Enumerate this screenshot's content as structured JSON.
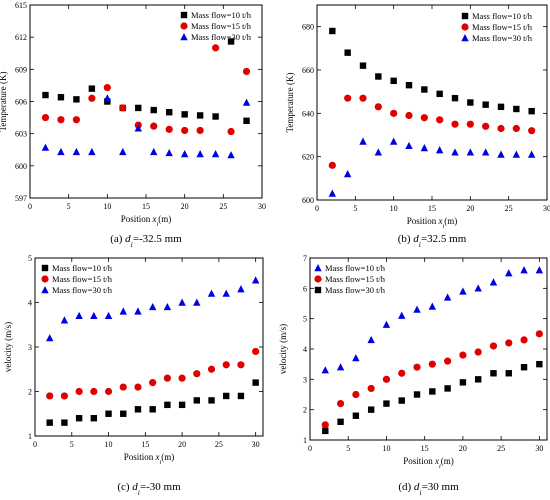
{
  "chart_data": [
    {
      "type": "scatter",
      "caption_pre": "(a) ",
      "caption_var": "d",
      "caption_sub": "i",
      "caption_post": "=-32.5 mm",
      "xlabel_pre": "Position ",
      "xlabel_var": "x",
      "xlabel_sub": "i",
      "xlabel_post": "(m)",
      "ylabel": "Temperature (K)",
      "xlim": [
        0,
        30
      ],
      "ylim": [
        597,
        615
      ],
      "xticks": [
        "0",
        "5",
        "10",
        "15",
        "20",
        "25",
        "30"
      ],
      "xtick_values": [
        0,
        5,
        10,
        15,
        20,
        25,
        30
      ],
      "yticks": [
        "597",
        "600",
        "603",
        "606",
        "609",
        "612",
        "615"
      ],
      "ytick_values": [
        597,
        600,
        603,
        606,
        609,
        612,
        615
      ],
      "x": [
        2,
        4,
        6,
        8,
        10,
        12,
        14,
        16,
        18,
        20,
        22,
        24,
        26,
        28
      ],
      "legend_position": "top-right",
      "series": [
        {
          "name": "Mass flow=10 t/h",
          "marker": "square",
          "color": "#000000",
          "values": [
            606.6,
            606.4,
            606.2,
            607.2,
            606.0,
            605.4,
            605.4,
            605.2,
            605.0,
            604.8,
            604.7,
            604.6,
            611.6,
            604.2
          ]
        },
        {
          "name": "Mass flow=15 t/h",
          "marker": "circle",
          "color": "#e00000",
          "values": [
            604.5,
            604.3,
            604.3,
            606.3,
            607.3,
            605.4,
            603.8,
            603.7,
            603.4,
            603.3,
            603.3,
            611.0,
            603.2,
            608.8
          ]
        },
        {
          "name": "Mass flow=30 t/h",
          "marker": "triangle",
          "color": "#0000e0",
          "values": [
            601.7,
            601.3,
            601.3,
            601.3,
            606.3,
            601.3,
            603.5,
            601.3,
            601.2,
            601.1,
            601.1,
            601.1,
            601.0,
            605.9
          ]
        }
      ]
    },
    {
      "type": "scatter",
      "caption_pre": "(b) ",
      "caption_var": "d",
      "caption_sub": "i",
      "caption_post": "=32.5 mm",
      "xlabel_pre": "Position ",
      "xlabel_var": "x",
      "xlabel_sub": "i",
      "xlabel_post": "(m)",
      "ylabel": "Temperature (K)",
      "xlim": [
        0,
        30
      ],
      "ylim": [
        600,
        690
      ],
      "xticks": [
        "0",
        "5",
        "10",
        "15",
        "20",
        "25",
        "30"
      ],
      "xtick_values": [
        0,
        5,
        10,
        15,
        20,
        25,
        30
      ],
      "yticks": [
        "600",
        "620",
        "640",
        "660",
        "680"
      ],
      "ytick_values": [
        600,
        620,
        640,
        660,
        680
      ],
      "x": [
        2,
        4,
        6,
        8,
        10,
        12,
        14,
        16,
        18,
        20,
        22,
        24,
        26,
        28
      ],
      "legend_position": "top-right",
      "series": [
        {
          "name": "Mass flow=10 t/h",
          "marker": "square",
          "color": "#000000",
          "values": [
            678,
            668,
            662,
            657,
            655,
            653,
            651,
            649,
            647,
            645,
            644,
            643,
            642,
            641
          ]
        },
        {
          "name": "Mass flow=15 t/h",
          "marker": "circle",
          "color": "#e00000",
          "values": [
            616,
            647,
            647,
            643,
            640,
            639,
            638,
            637,
            635,
            635,
            634,
            633,
            633,
            632
          ]
        },
        {
          "name": "Mass flow=30 t/h",
          "marker": "triangle",
          "color": "#0000e0",
          "values": [
            603,
            612,
            627,
            622,
            627,
            625,
            624,
            623,
            622,
            622,
            622,
            621,
            621,
            621
          ]
        }
      ]
    },
    {
      "type": "scatter",
      "caption_pre": "(c) ",
      "caption_var": "d",
      "caption_sub": "i",
      "caption_post": "=-30 mm",
      "xlabel_pre": "Position ",
      "xlabel_var": "x",
      "xlabel_sub": "i",
      "xlabel_post": "(m)",
      "ylabel": "velocity (m/s)",
      "xlim": [
        0,
        31
      ],
      "ylim": [
        1,
        5
      ],
      "xticks": [
        "0",
        "5",
        "10",
        "15",
        "20",
        "25",
        "30"
      ],
      "xtick_values": [
        0,
        5,
        10,
        15,
        20,
        25,
        30
      ],
      "yticks": [
        "1",
        "2",
        "3",
        "4",
        "5"
      ],
      "ytick_values": [
        1,
        2,
        3,
        4,
        5
      ],
      "x": [
        2,
        4,
        6,
        8,
        10,
        12,
        14,
        16,
        18,
        20,
        22,
        24,
        26,
        28,
        30
      ],
      "legend_position": "top-left",
      "series": [
        {
          "name": "Mass flow=10 t/h",
          "marker": "square",
          "color": "#000000",
          "values": [
            1.3,
            1.3,
            1.4,
            1.4,
            1.5,
            1.5,
            1.6,
            1.6,
            1.7,
            1.7,
            1.8,
            1.8,
            1.9,
            1.9,
            2.2
          ]
        },
        {
          "name": "Mass flow=15 t/h",
          "marker": "circle",
          "color": "#e00000",
          "values": [
            1.9,
            1.9,
            2.0,
            2.0,
            2.0,
            2.1,
            2.1,
            2.2,
            2.3,
            2.3,
            2.4,
            2.5,
            2.6,
            2.6,
            2.9
          ]
        },
        {
          "name": "Mass flow=30 t/h",
          "marker": "triangle",
          "color": "#0000e0",
          "values": [
            3.2,
            3.6,
            3.7,
            3.7,
            3.7,
            3.8,
            3.8,
            3.9,
            3.9,
            4.0,
            4.0,
            4.2,
            4.2,
            4.3,
            4.5
          ]
        }
      ]
    },
    {
      "type": "scatter",
      "caption_pre": "(d) ",
      "caption_var": "d",
      "caption_sub": "i",
      "caption_post": "=30 mm",
      "xlabel_pre": "Position ",
      "xlabel_var": "x",
      "xlabel_sub": "i",
      "xlabel_post": "(m)",
      "ylabel": "velocity (m/s)",
      "xlim": [
        0,
        31
      ],
      "ylim": [
        1,
        7
      ],
      "xticks": [
        "0",
        "5",
        "10",
        "15",
        "20",
        "25",
        "30"
      ],
      "xtick_values": [
        0,
        5,
        10,
        15,
        20,
        25,
        30
      ],
      "yticks": [
        "1",
        "2",
        "3",
        "4",
        "5",
        "6",
        "7"
      ],
      "ytick_values": [
        1,
        2,
        3,
        4,
        5,
        6,
        7
      ],
      "x": [
        2,
        4,
        6,
        8,
        10,
        12,
        14,
        16,
        18,
        20,
        22,
        24,
        26,
        28,
        30
      ],
      "legend_position": "top-left",
      "series": [
        {
          "name": "Mass flow=10 t/h",
          "marker": "triangle",
          "color": "#0000e0",
          "values": [
            3.3,
            3.4,
            3.7,
            4.3,
            4.8,
            5.1,
            5.3,
            5.4,
            5.7,
            5.9,
            6.0,
            6.2,
            6.5,
            6.6,
            6.6
          ]
        },
        {
          "name": "Mass flow=15 t/h",
          "marker": "circle",
          "color": "#e00000",
          "values": [
            1.5,
            2.2,
            2.5,
            2.7,
            3.0,
            3.2,
            3.4,
            3.5,
            3.6,
            3.8,
            3.9,
            4.1,
            4.2,
            4.3,
            4.5
          ]
        },
        {
          "name": "Mass flow=30 t/h",
          "marker": "square",
          "color": "#000000",
          "values": [
            1.3,
            1.6,
            1.8,
            2.0,
            2.2,
            2.3,
            2.5,
            2.6,
            2.7,
            2.9,
            3.0,
            3.2,
            3.2,
            3.4,
            3.5
          ]
        }
      ]
    }
  ]
}
